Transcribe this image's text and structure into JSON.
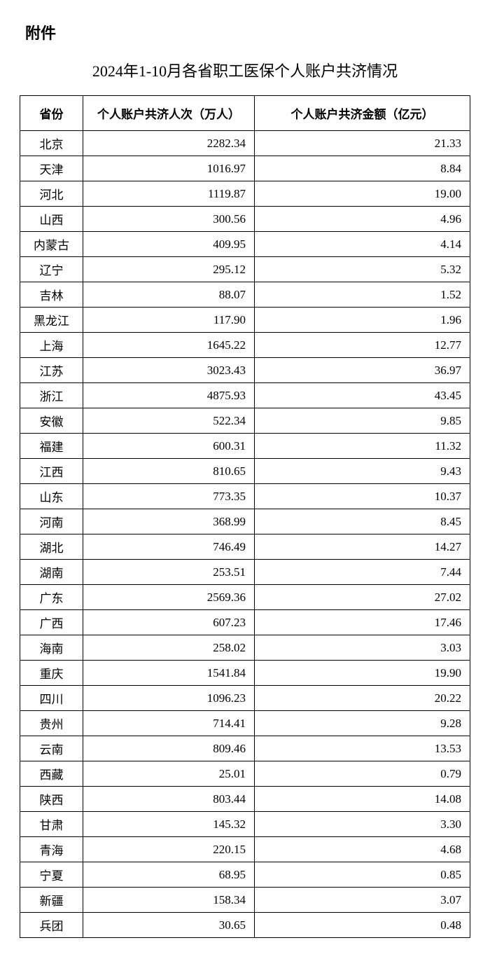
{
  "attachment_label": "附件",
  "title": "2024年1-10月各省职工医保个人账户共济情况",
  "columns": {
    "province": "省份",
    "count": "个人账户共济人次（万人）",
    "amount": "个人账户共济金额（亿元）"
  },
  "rows": [
    {
      "province": "北京",
      "count": "2282.34",
      "amount": "21.33"
    },
    {
      "province": "天津",
      "count": "1016.97",
      "amount": "8.84"
    },
    {
      "province": "河北",
      "count": "1119.87",
      "amount": "19.00"
    },
    {
      "province": "山西",
      "count": "300.56",
      "amount": "4.96"
    },
    {
      "province": "内蒙古",
      "count": "409.95",
      "amount": "4.14"
    },
    {
      "province": "辽宁",
      "count": "295.12",
      "amount": "5.32"
    },
    {
      "province": "吉林",
      "count": "88.07",
      "amount": "1.52"
    },
    {
      "province": "黑龙江",
      "count": "117.90",
      "amount": "1.96"
    },
    {
      "province": "上海",
      "count": "1645.22",
      "amount": "12.77"
    },
    {
      "province": "江苏",
      "count": "3023.43",
      "amount": "36.97"
    },
    {
      "province": "浙江",
      "count": "4875.93",
      "amount": "43.45"
    },
    {
      "province": "安徽",
      "count": "522.34",
      "amount": "9.85"
    },
    {
      "province": "福建",
      "count": "600.31",
      "amount": "11.32"
    },
    {
      "province": "江西",
      "count": "810.65",
      "amount": "9.43"
    },
    {
      "province": "山东",
      "count": "773.35",
      "amount": "10.37"
    },
    {
      "province": "河南",
      "count": "368.99",
      "amount": "8.45"
    },
    {
      "province": "湖北",
      "count": "746.49",
      "amount": "14.27"
    },
    {
      "province": "湖南",
      "count": "253.51",
      "amount": "7.44"
    },
    {
      "province": "广东",
      "count": "2569.36",
      "amount": "27.02"
    },
    {
      "province": "广西",
      "count": "607.23",
      "amount": "17.46"
    },
    {
      "province": "海南",
      "count": "258.02",
      "amount": "3.03"
    },
    {
      "province": "重庆",
      "count": "1541.84",
      "amount": "19.90"
    },
    {
      "province": "四川",
      "count": "1096.23",
      "amount": "20.22"
    },
    {
      "province": "贵州",
      "count": "714.41",
      "amount": "9.28"
    },
    {
      "province": "云南",
      "count": "809.46",
      "amount": "13.53"
    },
    {
      "province": "西藏",
      "count": "25.01",
      "amount": "0.79"
    },
    {
      "province": "陕西",
      "count": "803.44",
      "amount": "14.08"
    },
    {
      "province": "甘肃",
      "count": "145.32",
      "amount": "3.30"
    },
    {
      "province": "青海",
      "count": "220.15",
      "amount": "4.68"
    },
    {
      "province": "宁夏",
      "count": "68.95",
      "amount": "0.85"
    },
    {
      "province": "新疆",
      "count": "158.34",
      "amount": "3.07"
    },
    {
      "province": "兵团",
      "count": "30.65",
      "amount": "0.48"
    }
  ]
}
